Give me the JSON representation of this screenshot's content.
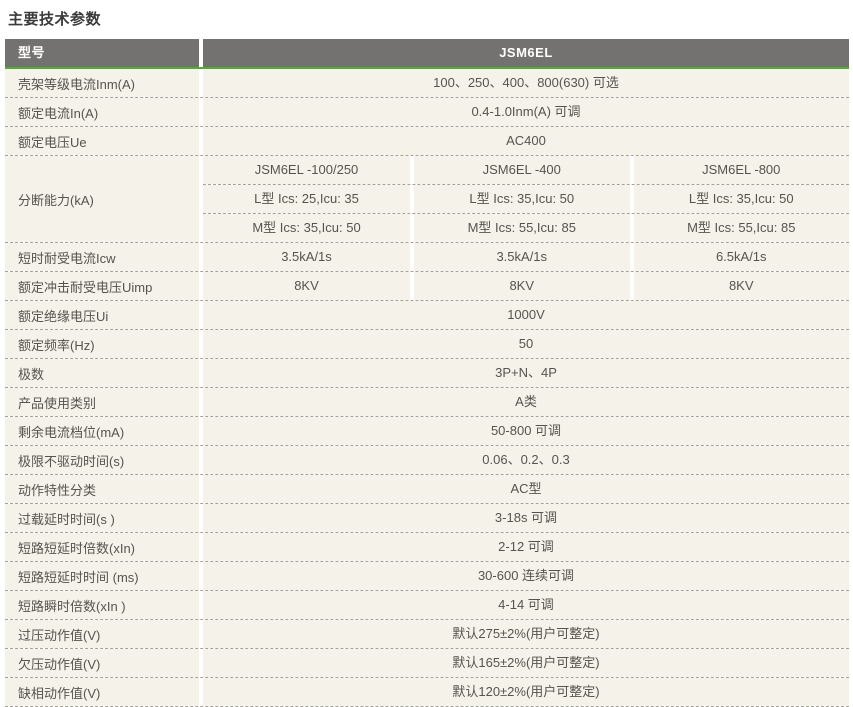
{
  "page_title": "主要技术参数",
  "colors": {
    "header_bg": "#747270",
    "header_text": "#ffffff",
    "accent_green": "#4fae2d",
    "row_bg": "#f4f2e9",
    "dotted_divider": "#a5a399",
    "cell_text": "#55544e"
  },
  "table": {
    "header": {
      "model_column": "型号",
      "product_name": "JSM6EL"
    },
    "rows": [
      {
        "label": "壳架等级电流Inm(A)",
        "value": "100、250、400、800(630) 可选"
      },
      {
        "label": "额定电流In(A)",
        "value": "0.4-1.0Inm(A) 可调"
      },
      {
        "label": "额定电压Ue",
        "value": "AC400"
      },
      {
        "label": "分断能力(kA)",
        "subrows": [
          [
            "JSM6EL -100/250",
            "JSM6EL -400",
            "JSM6EL -800"
          ],
          [
            "L型 Ics: 25,Icu: 35",
            "L型 Ics: 35,Icu: 50",
            "L型 Ics: 35,Icu: 50"
          ],
          [
            "M型 Ics: 35,Icu: 50",
            "M型 Ics: 55,Icu: 85",
            "M型 Ics: 55,Icu: 85"
          ]
        ]
      },
      {
        "label": "短时耐受电流Icw",
        "values": [
          "3.5kA/1s",
          "3.5kA/1s",
          "6.5kA/1s"
        ]
      },
      {
        "label": "额定冲击耐受电压Uimp",
        "values": [
          "8KV",
          "8KV",
          "8KV"
        ]
      },
      {
        "label": "额定绝缘电压Ui",
        "value": "1000V"
      },
      {
        "label": "额定频率(Hz)",
        "value": "50"
      },
      {
        "label": "极数",
        "value": "3P+N、4P"
      },
      {
        "label": "产品使用类别",
        "value": "A类"
      },
      {
        "label": "剩余电流档位(mA)",
        "value": "50-800 可调"
      },
      {
        "label": "极限不驱动时间(s)",
        "value": "0.06、0.2、0.3"
      },
      {
        "label": "动作特性分类",
        "value": "AC型"
      },
      {
        "label": "过载延时时间(s )",
        "value": "3-18s 可调"
      },
      {
        "label": "短路短延时倍数(xIn)",
        "value": "2-12 可调"
      },
      {
        "label": "短路短延时时间 (ms)",
        "value": "30-600 连续可调"
      },
      {
        "label": "短路瞬时倍数(xIn )",
        "value": "4-14 可调"
      },
      {
        "label": "过压动作值(V)",
        "value": "默认275±2%(用户可整定)"
      },
      {
        "label": "欠压动作值(V)",
        "value": "默认165±2%(用户可整定)"
      },
      {
        "label": "缺相动作值(V)",
        "value": "默认120±2%(用户可整定)"
      }
    ]
  }
}
